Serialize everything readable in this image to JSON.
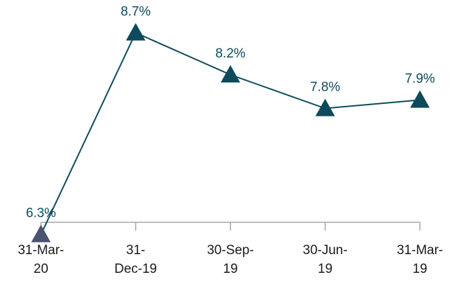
{
  "chart_data": {
    "type": "line",
    "categories": [
      [
        "31-Mar-",
        "20"
      ],
      [
        "31-",
        "Dec-19"
      ],
      [
        "30-Sep-",
        "19"
      ],
      [
        "30-Jun-",
        "19"
      ],
      [
        "31-Mar-",
        "19"
      ]
    ],
    "values": [
      6.3,
      8.7,
      8.2,
      7.8,
      7.9
    ],
    "data_labels": [
      "6.3%",
      "8.7%",
      "8.2%",
      "7.8%",
      "7.9%"
    ],
    "ylim": [
      6.0,
      8.9
    ],
    "grid": false,
    "marker": "triangle",
    "colors": {
      "line": "#0d4a5c",
      "marker": "#0d4a5c",
      "highlight_marker": "#4a5470",
      "label": "#0d4a5c",
      "axis": "#a6a6a6"
    }
  }
}
